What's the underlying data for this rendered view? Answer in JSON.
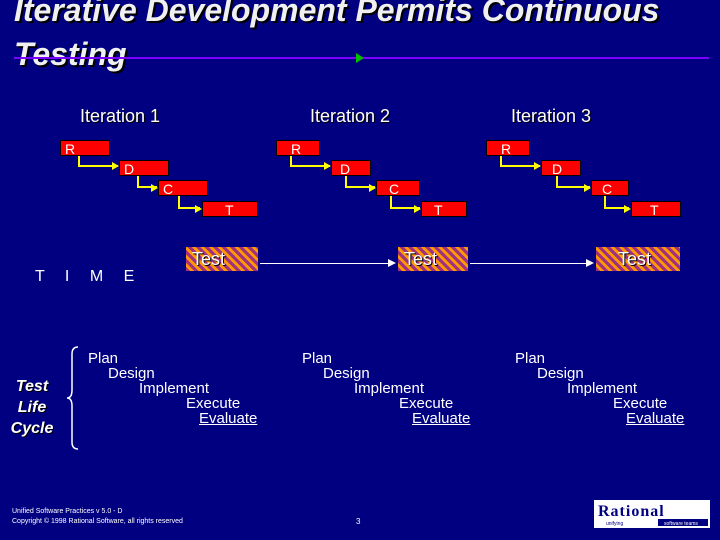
{
  "slide": {
    "title_line1": "Iterative Development Permits Continuous",
    "title_line2": "Testing"
  },
  "iterations": [
    {
      "label": "Iteration 1",
      "boxes": [
        "R",
        "D",
        "C",
        "T"
      ],
      "test": "Test"
    },
    {
      "label": "Iteration 2",
      "boxes": [
        "R",
        "D",
        "C",
        "T"
      ],
      "test": "Test"
    },
    {
      "label": "Iteration 3",
      "boxes": [
        "R",
        "D",
        "C",
        "T"
      ],
      "test": "Test"
    }
  ],
  "time_label": "T I M E",
  "test_life_cycle": {
    "line1": "Test",
    "line2": "Life",
    "line3": "Cycle"
  },
  "steps": [
    "Plan",
    "Design",
    "Implement",
    "Execute",
    "Evaluate"
  ],
  "footer": {
    "line1": "Unified Software Practices v 5.0 - D",
    "line2": "Copyright © 1998 Rational Software, all rights reserved",
    "page": "3"
  },
  "logo": {
    "name": "Rational",
    "tagline": "unifying software teams"
  },
  "colors": {
    "background": "#000080",
    "box": "#ff0000",
    "connector": "#ffff00",
    "rule": "#7b00ff"
  }
}
